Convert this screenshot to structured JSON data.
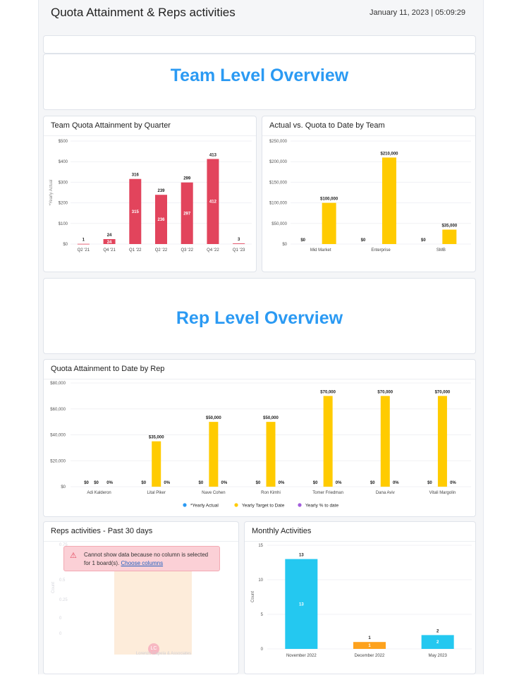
{
  "header": {
    "title": "Quota Attainment & Reps activities",
    "date": "January 11, 2023 | 05:09:29"
  },
  "sections": {
    "team": "Team Level Overview",
    "rep": "Rep Level Overview"
  },
  "colors": {
    "red": "#e2445c",
    "yellow": "#ffcb00",
    "blue": "#2b9af3",
    "purple": "#a25ddc",
    "cyan": "#24c8f0",
    "orange": "#fda21d"
  },
  "widgets": {
    "team_quota": {
      "title": "Team Quota Attainment by Quarter"
    },
    "actual_vs_quota": {
      "title": "Actual vs. Quota to Date by Team"
    },
    "rep_quota": {
      "title": "Quota Attainment to Date by Rep"
    },
    "reps_activities": {
      "title": "Reps activities - Past 30 days",
      "error_line1": "Cannot show data because no column is selected",
      "error_line2": "for 1 board(s).",
      "error_link": "Choose columns",
      "ghost_ticks": [
        "0.75",
        "0.5",
        "0.25",
        "0",
        "0"
      ],
      "ghost_axis": "Count",
      "ghost_avatar": "LC",
      "ghost_label": "Lorenzo Capela & Associates"
    },
    "monthly": {
      "title": "Monthly Activities"
    }
  },
  "chart_data": [
    {
      "id": "team_quota",
      "type": "bar",
      "categories": [
        "Q2 '21",
        "Q4 '21",
        "Q1 '22",
        "Q2 '22",
        "Q3 '22",
        "Q4 '22",
        "Q1 '23"
      ],
      "values": [
        1,
        24,
        316,
        239,
        299,
        413,
        3
      ],
      "top_labels": [
        "1",
        "24",
        "316",
        "239",
        "299",
        "413",
        "3"
      ],
      "inner_labels": [
        "",
        "24",
        "315",
        "236",
        "297",
        "412",
        ""
      ],
      "yticks": [
        "$0",
        "$100",
        "$200",
        "$300",
        "$400",
        "$500"
      ],
      "ylim": [
        0,
        500
      ],
      "ylabel": "*Yearly Actual"
    },
    {
      "id": "actual_vs_quota",
      "type": "bar",
      "categories": [
        "Mid Market",
        "Enterprise",
        "SMB"
      ],
      "series": [
        {
          "values": [
            0,
            0,
            0
          ],
          "labels": [
            "$0",
            "$0",
            "$0"
          ]
        },
        {
          "values": [
            100000,
            210000,
            35000
          ],
          "labels": [
            "$100,000",
            "$210,000",
            "$35,000"
          ]
        }
      ],
      "yticks": [
        "$0",
        "$50,000",
        "$100,000",
        "$150,000",
        "$200,000",
        "$250,000"
      ],
      "ylim": [
        0,
        250000
      ]
    },
    {
      "id": "rep_quota",
      "type": "bar",
      "categories": [
        "Adi Kalderon",
        "Lital Piker",
        "Nave Cohen",
        "Ron Kimhi",
        "Tomer Friedman",
        "Dana Aviv",
        "Vitali Margolin"
      ],
      "series": [
        {
          "name": "*Yearly Actual",
          "values": [
            0,
            0,
            0,
            0,
            0,
            0,
            0
          ],
          "labels": [
            "$0",
            "$0",
            "$0",
            "$0",
            "$0",
            "$0",
            "$0"
          ]
        },
        {
          "name": "Yearly Target to Date",
          "values": [
            0,
            35000,
            50000,
            50000,
            70000,
            70000,
            70000
          ],
          "labels": [
            "$0",
            "$35,000",
            "$50,000",
            "$50,000",
            "$70,000",
            "$70,000",
            "$70,000"
          ]
        },
        {
          "name": "Yearly % to date",
          "values": [
            0,
            0,
            0,
            0,
            0,
            0,
            0
          ],
          "labels": [
            "0%",
            "0%",
            "0%",
            "0%",
            "0%",
            "0%",
            "0%"
          ]
        }
      ],
      "yticks": [
        "$0",
        "$20,000",
        "$40,000",
        "$60,000",
        "$80,000"
      ],
      "ylim": [
        0,
        80000
      ],
      "legend": "bottom"
    },
    {
      "id": "monthly",
      "type": "bar",
      "categories": [
        "November 2022",
        "December 2022",
        "May 2023"
      ],
      "values": [
        13,
        1,
        2
      ],
      "labels": [
        "13",
        "1",
        "2"
      ],
      "colors": [
        "#24c8f0",
        "#fda21d",
        "#24c8f0"
      ],
      "yticks": [
        "0",
        "5",
        "10",
        "15"
      ],
      "ylim": [
        0,
        15
      ],
      "ylabel": "Count"
    }
  ]
}
